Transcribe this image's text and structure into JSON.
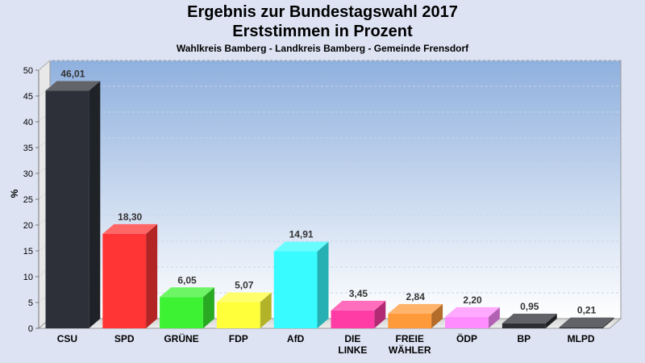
{
  "chart_data": {
    "type": "bar",
    "title": "Ergebnis zur Bundestagswahl 2017",
    "subtitle": "Erststimmen in Prozent",
    "caption": "Wahlkreis Bamberg - Landkreis Bamberg - Gemeinde Frensdorf",
    "ylabel": "%",
    "ylim": [
      0,
      50
    ],
    "yticks": [
      0,
      5,
      10,
      15,
      20,
      25,
      30,
      35,
      40,
      45,
      50
    ],
    "grid": true,
    "bars": [
      {
        "category": "CSU",
        "value": 46.01,
        "label": "46,01",
        "color": "#2d3038"
      },
      {
        "category": "SPD",
        "value": 18.3,
        "label": "18,30",
        "color": "#ff3434"
      },
      {
        "category": "GRÜNE",
        "value": 6.05,
        "label": "6,05",
        "color": "#3cf232"
      },
      {
        "category": "FDP",
        "value": 5.07,
        "label": "5,07",
        "color": "#ffff3a"
      },
      {
        "category": "AfD",
        "value": 14.91,
        "label": "14,91",
        "color": "#37fbff"
      },
      {
        "category": "DIE LINKE",
        "value": 3.45,
        "label": "3,45",
        "color": "#ff3ca6"
      },
      {
        "category": "FREIE WÄHLER",
        "value": 2.84,
        "label": "2,84",
        "color": "#ff9a3a"
      },
      {
        "category": "ÖDP",
        "value": 2.2,
        "label": "2,20",
        "color": "#ff8cff"
      },
      {
        "category": "BP",
        "value": 0.95,
        "label": "0,95",
        "color": "#2c2e34"
      },
      {
        "category": "MLPD",
        "value": 0.21,
        "label": "0,21",
        "color": "#2c2e34"
      }
    ]
  }
}
